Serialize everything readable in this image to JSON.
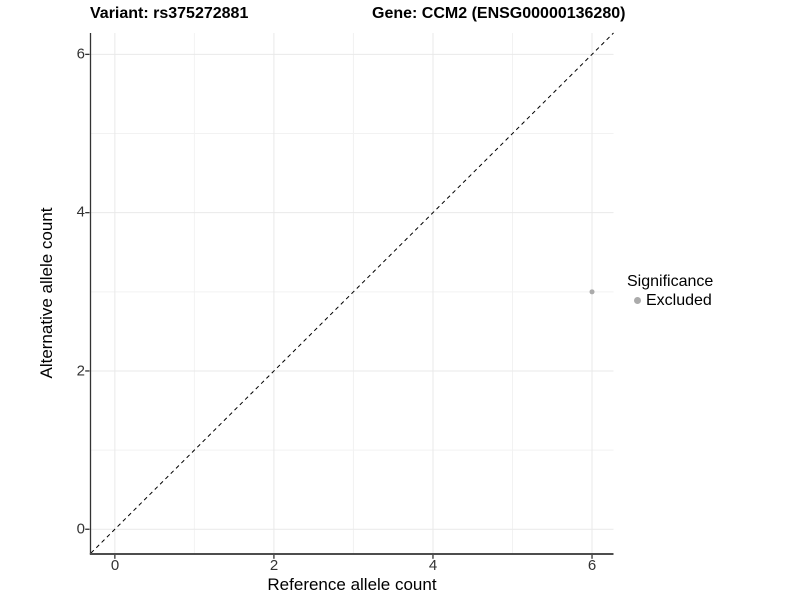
{
  "chart_data": {
    "type": "scatter",
    "title_left": "Variant: rs375272881",
    "title_right": "Gene: CCM2 (ENSG00000136280)",
    "xlabel": "Reference allele count",
    "ylabel": "Alternative allele count",
    "xlim": [
      -0.3,
      6.27
    ],
    "ylim": [
      -0.3,
      6.27
    ],
    "x_ticks": [
      0,
      2,
      4,
      6
    ],
    "y_ticks": [
      0,
      2,
      4,
      6
    ],
    "x_tick_labels": [
      "0",
      "2",
      "4",
      "6"
    ],
    "y_tick_labels": [
      "0",
      "2",
      "4",
      "6"
    ],
    "x_minor": [
      1,
      3,
      5
    ],
    "y_minor": [
      1,
      3,
      5
    ],
    "grid": true,
    "points": [
      {
        "x": 6,
        "y": 3,
        "significance": "Excluded"
      }
    ],
    "identity_line": {
      "x1": -0.3,
      "y1": -0.3,
      "x2": 6.27,
      "y2": 6.27,
      "dashed": true,
      "color": "#000000"
    },
    "point_color": "#ababab",
    "legend": {
      "title": "Significance",
      "position": "right",
      "items": [
        {
          "label": "Excluded",
          "color": "#ababab"
        }
      ]
    },
    "colors": {
      "grid_major": "#e9e9e9",
      "grid_minor": "#f2f2f2",
      "axis_line": "#333333",
      "axis_line_bottom": "#4d4d4d",
      "tick_text": "#333333"
    }
  }
}
